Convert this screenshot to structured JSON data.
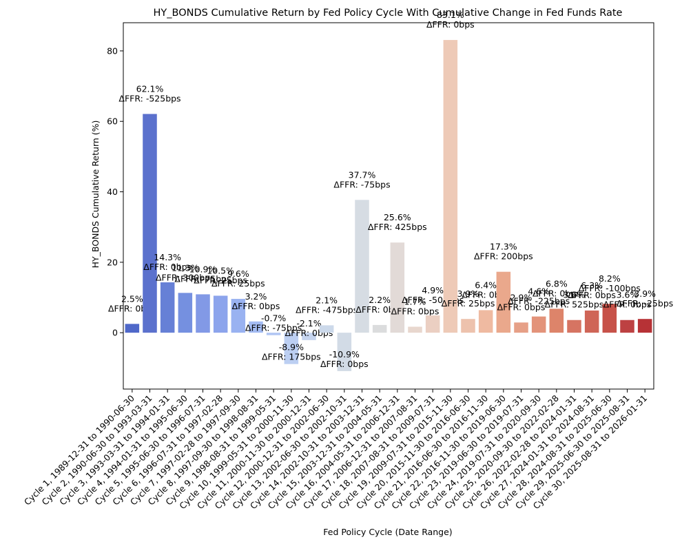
{
  "chart_data": {
    "type": "bar",
    "title": "HY_BONDS Cumulative Return by Fed Policy Cycle With Cumulative Change in Fed Funds Rate",
    "xlabel": "Fed Policy Cycle (Date Range)",
    "ylabel": "HY_BONDS Cumulative Return (%)",
    "ylim": [
      -16,
      88
    ],
    "yticks": [
      0,
      20,
      40,
      60,
      80
    ],
    "grid": false,
    "categories": [
      "Cycle 1, 1989-12-31 to 1990-06-30",
      "Cycle 2, 1990-06-30 to 1993-03-31",
      "Cycle 3, 1993-03-31 to 1994-01-31",
      "Cycle 4, 1994-01-31 to 1995-06-30",
      "Cycle 5, 1995-06-30 to 1996-07-31",
      "Cycle 6, 1996-07-31 to 1997-02-28",
      "Cycle 7, 1997-02-28 to 1997-09-30",
      "Cycle 8, 1997-09-30 to 1998-08-31",
      "Cycle 9, 1998-08-31 to 1999-05-31",
      "Cycle 10, 1999-05-31 to 2000-11-30",
      "Cycle 11, 2000-11-30 to 2000-12-31",
      "Cycle 12, 2000-12-31 to 2002-06-30",
      "Cycle 13, 2002-06-30 to 2002-10-31",
      "Cycle 14, 2002-10-31 to 2003-12-31",
      "Cycle 15, 2003-12-31 to 2004-05-31",
      "Cycle 16, 2004-05-31 to 2006-12-31",
      "Cycle 17, 2006-12-31 to 2007-08-31",
      "Cycle 18, 2007-08-31 to 2009-07-31",
      "Cycle 19, 2009-07-31 to 2015-11-30",
      "Cycle 20, 2015-11-30 to 2016-06-30",
      "Cycle 21, 2016-06-30 to 2016-11-30",
      "Cycle 22, 2016-11-30 to 2019-06-30",
      "Cycle 23, 2019-06-30 to 2019-07-31",
      "Cycle 24, 2019-07-31 to 2020-09-30",
      "Cycle 25, 2020-09-30 to 2022-02-28",
      "Cycle 26, 2022-02-28 to 2024-01-31",
      "Cycle 27, 2024-01-31 to 2024-08-31",
      "Cycle 28, 2024-08-31 to 2025-06-30",
      "Cycle 29, 2025-06-30 to 2025-08-31",
      "Cycle 30, 2025-08-31 to 2026-01-31"
    ],
    "values": [
      2.5,
      62.1,
      14.3,
      11.3,
      10.9,
      10.5,
      9.6,
      3.2,
      -0.7,
      -8.9,
      -2.1,
      2.1,
      -10.9,
      37.7,
      2.2,
      25.6,
      1.7,
      4.9,
      83.1,
      3.9,
      6.4,
      17.3,
      2.9,
      4.6,
      6.8,
      3.6,
      6.3,
      8.2,
      3.6,
      3.9
    ],
    "value_labels": [
      "2.5%",
      "62.1%",
      "14.3%",
      "11.3%",
      "10.9%",
      "10.5%",
      "9.6%",
      "3.2%",
      "-0.7%",
      "-8.9%",
      "-2.1%",
      "2.1%",
      "-10.9%",
      "37.7%",
      "2.2%",
      "25.6%",
      "1.7%",
      "4.9%",
      "83.1%",
      "3.9%",
      "6.4%",
      "17.3%",
      "2.9%",
      "4.6%",
      "6.8%",
      "3.6%",
      "6.3%",
      "8.2%",
      "3.6%",
      "3.9%"
    ],
    "ffr_labels": [
      "ΔFFR: 0bps",
      "ΔFFR: -525bps",
      "ΔFFR: 0bps",
      "ΔFFR: 300bps",
      "ΔFFR: -75bps",
      "ΔFFR: 25bps",
      "ΔFFR: 25bps",
      "ΔFFR: 0bps",
      "ΔFFR: -75bps",
      "ΔFFR: 175bps",
      "ΔFFR: 0bps",
      "ΔFFR: -475bps",
      "ΔFFR: 0bps",
      "ΔFFR: -75bps",
      "ΔFFR: 0bps",
      "ΔFFR: 425bps",
      "ΔFFR: 0bps",
      "ΔFFR: -500bps",
      "ΔFFR: 0bps",
      "ΔFFR: 25bps",
      "ΔFFR: 0bps",
      "ΔFFR: 200bps",
      "ΔFFR: 0bps",
      "ΔFFR: -225bps",
      "ΔFFR: 0bps",
      "ΔFFR: 525bps",
      "ΔFFR: 0bps",
      "ΔFFR: -100bps",
      "ΔFFR: 0bps",
      "ΔFFR: -25bps"
    ],
    "colors": [
      "#4f68c9",
      "#5b71cd",
      "#6680d6",
      "#7590e0",
      "#8299e6",
      "#8ca4ec",
      "#99b2f1",
      "#a4bcf3",
      "#b1c6f3",
      "#bccff2",
      "#c5d4ef",
      "#ccd9ea",
      "#d2dbe6",
      "#d6dce3",
      "#dbdcdd",
      "#e2dad7",
      "#e8d7ce",
      "#ebcfc2",
      "#eecab7",
      "#edc2ad",
      "#efbaa1",
      "#eaa88c",
      "#e6a087",
      "#e3937a",
      "#dd846a",
      "#d67462",
      "#cf6557",
      "#c75249",
      "#bd4142",
      "#b73236"
    ]
  }
}
